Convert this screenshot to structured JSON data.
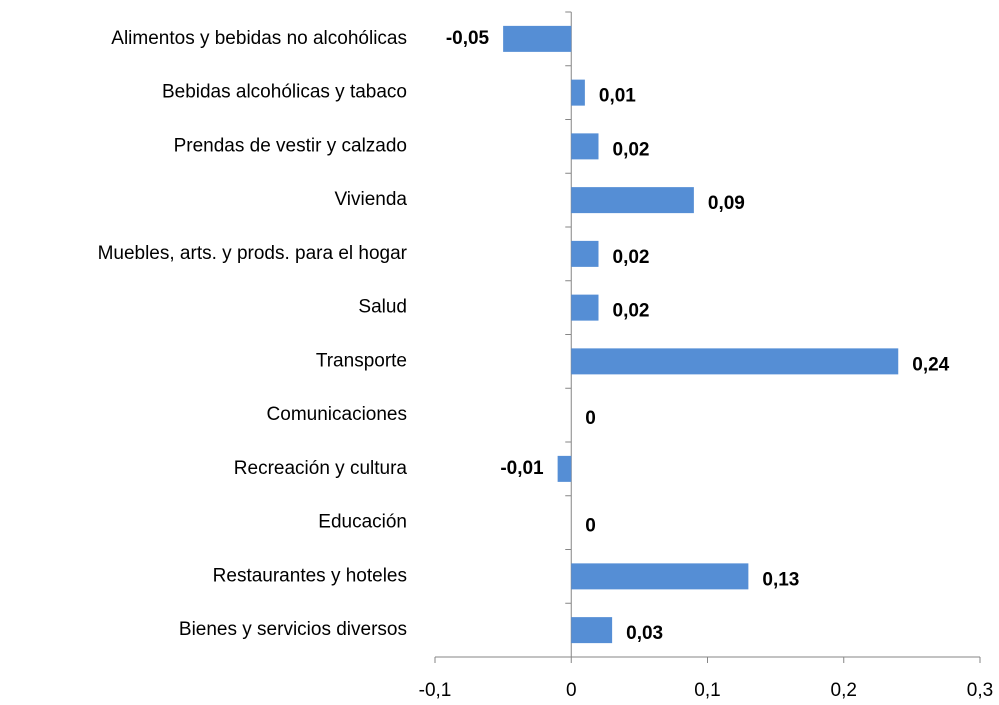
{
  "chart_data": {
    "type": "bar",
    "orientation": "horizontal",
    "categories": [
      "Alimentos y bebidas no alcohólicas",
      "Bebidas alcohólicas y tabaco",
      "Prendas de vestir y calzado",
      "Vivienda",
      "Muebles, arts. y prods. para el hogar",
      "Salud",
      "Transporte",
      "Comunicaciones",
      "Recreación y cultura",
      "Educación",
      "Restaurantes y hoteles",
      "Bienes y servicios diversos"
    ],
    "values": [
      -0.05,
      0.01,
      0.02,
      0.09,
      0.02,
      0.02,
      0.24,
      0,
      -0.01,
      0,
      0.13,
      0.03
    ],
    "value_labels": [
      "-0,05",
      "0,01",
      "0,02",
      "0,09",
      "0,02",
      "0,02",
      "0,24",
      "0",
      "-0,01",
      "0",
      "0,13",
      "0,03"
    ],
    "color": "#558ed5",
    "xlim": [
      -0.1,
      0.3
    ],
    "xticks": [
      {
        "value": -0.1,
        "label": "-0,1"
      },
      0,
      {
        "value": 0.1,
        "label": "0,1"
      },
      {
        "value": 0.2,
        "label": "0,2"
      },
      {
        "value": 0.3,
        "label": "0,3"
      }
    ]
  }
}
